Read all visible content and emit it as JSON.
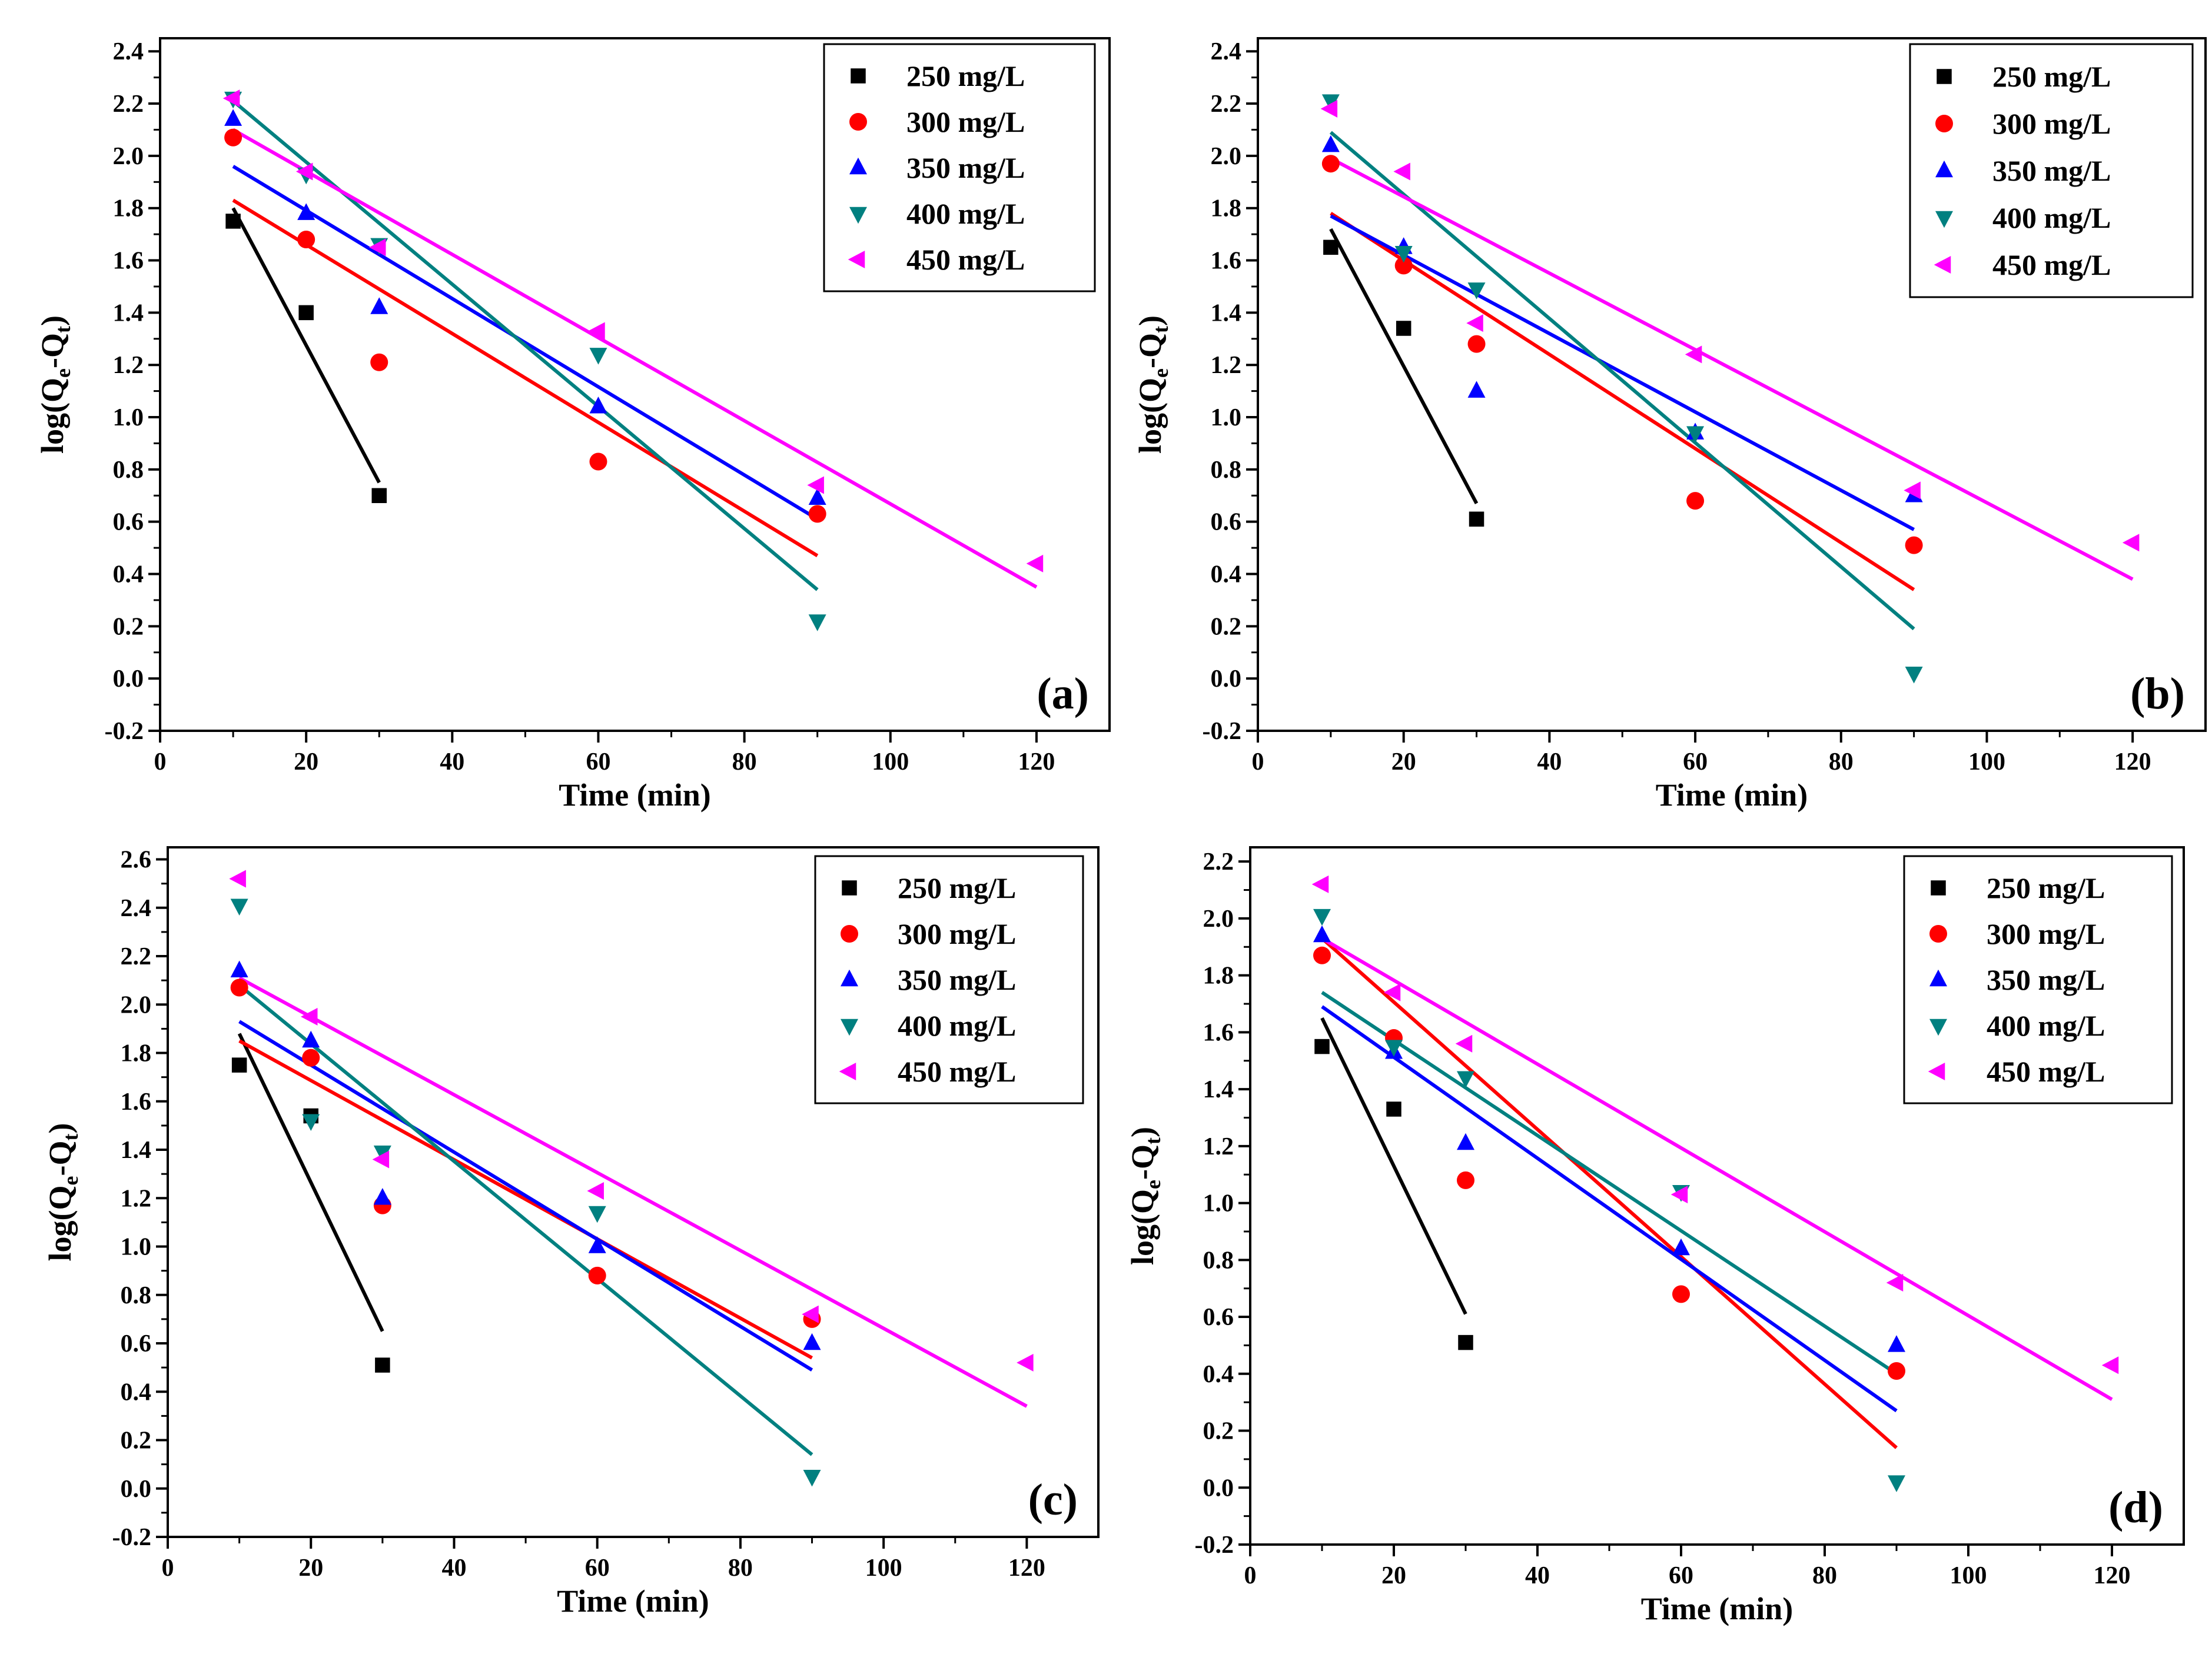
{
  "figure": {
    "colors": {
      "250 mg/L": "#000000",
      "300 mg/L": "#ff0000",
      "350 mg/L": "#0000ff",
      "400 mg/L": "#008080",
      "450 mg/L": "#ff00ff"
    },
    "markers": {
      "250 mg/L": "square",
      "300 mg/L": "circle",
      "350 mg/L": "triangle-up",
      "400 mg/L": "triangle-down",
      "450 mg/L": "triangle-left"
    }
  },
  "chart_data": [
    {
      "type": "scatter",
      "panel_label": "(a)",
      "xlabel": "Time (min)",
      "ylabel": "log(Q",
      "ylabel_sub_e": "e",
      "ylabel_mid": "-Q",
      "ylabel_sub_t": "t",
      "ylabel_end": ")",
      "xlim": [
        0,
        130
      ],
      "ylim": [
        -0.2,
        2.45
      ],
      "xticks": [
        0,
        20,
        40,
        60,
        80,
        100,
        120
      ],
      "xtick_labels": [
        "0",
        "20",
        "40",
        "60",
        "80",
        "100",
        "120"
      ],
      "yticks": [
        -0.2,
        0.0,
        0.2,
        0.4,
        0.6,
        0.8,
        1.0,
        1.2,
        1.4,
        1.6,
        1.8,
        2.0,
        2.2,
        2.4
      ],
      "ytick_labels": [
        "-0.2",
        "0.0",
        "0.2",
        "0.4",
        "0.6",
        "0.8",
        "1.0",
        "1.2",
        "1.4",
        "1.6",
        "1.8",
        "2.0",
        "2.2",
        "2.4"
      ],
      "legend_position": "top-right",
      "series": [
        {
          "name": "250 mg/L",
          "x": [
            10,
            20,
            30
          ],
          "y": [
            1.75,
            1.4,
            0.7
          ],
          "fit": [
            [
              10,
              1.8
            ],
            [
              30,
              0.75
            ]
          ]
        },
        {
          "name": "300 mg/L",
          "x": [
            10,
            20,
            30,
            60,
            90
          ],
          "y": [
            2.07,
            1.68,
            1.21,
            0.83,
            0.63
          ],
          "fit": [
            [
              10,
              1.83
            ],
            [
              90,
              0.47
            ]
          ]
        },
        {
          "name": "350 mg/L",
          "x": [
            10,
            20,
            30,
            60,
            90
          ],
          "y": [
            2.14,
            1.78,
            1.42,
            1.04,
            0.69
          ],
          "fit": [
            [
              10,
              1.96
            ],
            [
              90,
              0.61
            ]
          ]
        },
        {
          "name": "400 mg/L",
          "x": [
            10,
            20,
            30,
            60,
            90
          ],
          "y": [
            2.22,
            1.93,
            1.66,
            1.24,
            0.22
          ],
          "fit": [
            [
              10,
              2.21
            ],
            [
              90,
              0.34
            ]
          ]
        },
        {
          "name": "450 mg/L",
          "x": [
            10,
            20,
            30,
            60,
            90,
            120
          ],
          "y": [
            2.22,
            1.94,
            1.65,
            1.33,
            0.74,
            0.44
          ],
          "fit": [
            [
              10,
              2.1
            ],
            [
              120,
              0.35
            ]
          ]
        }
      ]
    },
    {
      "type": "scatter",
      "panel_label": "(b)",
      "xlabel": "Time (min)",
      "ylabel": "log(Q",
      "ylabel_sub_e": "e",
      "ylabel_mid": "-Q",
      "ylabel_sub_t": "t",
      "ylabel_end": ")",
      "xlim": [
        0,
        130
      ],
      "ylim": [
        -0.2,
        2.45
      ],
      "xticks": [
        0,
        20,
        40,
        60,
        80,
        100,
        120
      ],
      "xtick_labels": [
        "0",
        "20",
        "40",
        "60",
        "80",
        "100",
        "120"
      ],
      "yticks": [
        -0.2,
        0.0,
        0.2,
        0.4,
        0.6,
        0.8,
        1.0,
        1.2,
        1.4,
        1.6,
        1.8,
        2.0,
        2.2,
        2.4
      ],
      "ytick_labels": [
        "-0.2",
        "0.0",
        "0.2",
        "0.4",
        "0.6",
        "0.8",
        "1.0",
        "1.2",
        "1.4",
        "1.6",
        "1.8",
        "2.0",
        "2.2",
        "2.4"
      ],
      "legend_position": "top-right",
      "series": [
        {
          "name": "250 mg/L",
          "x": [
            10,
            20,
            30
          ],
          "y": [
            1.65,
            1.34,
            0.61
          ],
          "fit": [
            [
              10,
              1.72
            ],
            [
              30,
              0.67
            ]
          ]
        },
        {
          "name": "300 mg/L",
          "x": [
            10,
            20,
            30,
            60,
            90
          ],
          "y": [
            1.97,
            1.58,
            1.28,
            0.68,
            0.51
          ],
          "fit": [
            [
              10,
              1.78
            ],
            [
              90,
              0.34
            ]
          ]
        },
        {
          "name": "350 mg/L",
          "x": [
            10,
            20,
            30,
            60,
            90
          ],
          "y": [
            2.04,
            1.65,
            1.1,
            0.94,
            0.7
          ],
          "fit": [
            [
              10,
              1.77
            ],
            [
              90,
              0.57
            ]
          ]
        },
        {
          "name": "400 mg/L",
          "x": [
            10,
            20,
            30,
            60,
            90
          ],
          "y": [
            2.21,
            1.63,
            1.49,
            0.94,
            0.02
          ],
          "fit": [
            [
              10,
              2.09
            ],
            [
              90,
              0.19
            ]
          ]
        },
        {
          "name": "450 mg/L",
          "x": [
            10,
            20,
            30,
            60,
            90,
            120
          ],
          "y": [
            2.18,
            1.94,
            1.36,
            1.24,
            0.72,
            0.52
          ],
          "fit": [
            [
              10,
              1.99
            ],
            [
              120,
              0.38
            ]
          ]
        }
      ]
    },
    {
      "type": "scatter",
      "panel_label": "(c)",
      "xlabel": "Time (min)",
      "ylabel": "log(Q",
      "ylabel_sub_e": "e",
      "ylabel_mid": "-Q",
      "ylabel_sub_t": "t",
      "ylabel_end": ")",
      "xlim": [
        0,
        130
      ],
      "ylim": [
        -0.2,
        2.65
      ],
      "xticks": [
        0,
        20,
        40,
        60,
        80,
        100,
        120
      ],
      "xtick_labels": [
        "0",
        "20",
        "40",
        "60",
        "80",
        "100",
        "120"
      ],
      "yticks": [
        -0.2,
        0.0,
        0.2,
        0.4,
        0.6,
        0.8,
        1.0,
        1.2,
        1.4,
        1.6,
        1.8,
        2.0,
        2.2,
        2.4,
        2.6
      ],
      "ytick_labels": [
        "-0.2",
        "0.0",
        "0.2",
        "0.4",
        "0.6",
        "0.8",
        "1.0",
        "1.2",
        "1.4",
        "1.6",
        "1.8",
        "2.0",
        "2.2",
        "2.4",
        "2.6"
      ],
      "legend_position": "top-right",
      "series": [
        {
          "name": "250 mg/L",
          "x": [
            10,
            20,
            30
          ],
          "y": [
            1.75,
            1.54,
            0.51
          ],
          "fit": [
            [
              10,
              1.88
            ],
            [
              30,
              0.65
            ]
          ]
        },
        {
          "name": "300 mg/L",
          "x": [
            10,
            20,
            30,
            60,
            90
          ],
          "y": [
            2.07,
            1.78,
            1.17,
            0.88,
            0.7
          ],
          "fit": [
            [
              10,
              1.85
            ],
            [
              90,
              0.54
            ]
          ]
        },
        {
          "name": "350 mg/L",
          "x": [
            10,
            20,
            30,
            60,
            90
          ],
          "y": [
            2.14,
            1.85,
            1.2,
            1.0,
            0.6
          ],
          "fit": [
            [
              10,
              1.93
            ],
            [
              90,
              0.49
            ]
          ]
        },
        {
          "name": "400 mg/L",
          "x": [
            10,
            20,
            30,
            60,
            90
          ],
          "y": [
            2.41,
            1.52,
            1.39,
            1.14,
            0.05
          ],
          "fit": [
            [
              10,
              2.08
            ],
            [
              90,
              0.14
            ]
          ]
        },
        {
          "name": "450 mg/L",
          "x": [
            10,
            20,
            30,
            60,
            90,
            120
          ],
          "y": [
            2.52,
            1.95,
            1.36,
            1.23,
            0.72,
            0.52
          ],
          "fit": [
            [
              10,
              2.11
            ],
            [
              120,
              0.34
            ]
          ]
        }
      ]
    },
    {
      "type": "scatter",
      "panel_label": "(d)",
      "xlabel": "Time (min)",
      "ylabel": "log(Q",
      "ylabel_sub_e": "e",
      "ylabel_mid": "-Q",
      "ylabel_sub_t": "t",
      "ylabel_end": ")",
      "xlim": [
        0,
        130
      ],
      "ylim": [
        -0.2,
        2.25
      ],
      "xticks": [
        0,
        20,
        40,
        60,
        80,
        100,
        120
      ],
      "xtick_labels": [
        "0",
        "20",
        "40",
        "60",
        "80",
        "100",
        "120"
      ],
      "yticks": [
        -0.2,
        0.0,
        0.2,
        0.4,
        0.6,
        0.8,
        1.0,
        1.2,
        1.4,
        1.6,
        1.8,
        2.0,
        2.2
      ],
      "ytick_labels": [
        "-0.2",
        "0.0",
        "0.2",
        "0.4",
        "0.6",
        "0.8",
        "1.0",
        "1.2",
        "1.4",
        "1.6",
        "1.8",
        "2.0",
        "2.2"
      ],
      "legend_position": "top-right",
      "series": [
        {
          "name": "250 mg/L",
          "x": [
            10,
            20,
            30
          ],
          "y": [
            1.55,
            1.33,
            0.51
          ],
          "fit": [
            [
              10,
              1.65
            ],
            [
              30,
              0.61
            ]
          ]
        },
        {
          "name": "300 mg/L",
          "x": [
            10,
            20,
            30,
            60,
            90
          ],
          "y": [
            1.87,
            1.58,
            1.08,
            0.68,
            0.41
          ],
          "fit": [
            [
              10,
              1.93
            ],
            [
              90,
              0.14
            ]
          ]
        },
        {
          "name": "350 mg/L",
          "x": [
            10,
            20,
            30,
            60,
            90
          ],
          "y": [
            1.94,
            1.53,
            1.21,
            0.84,
            0.5
          ],
          "fit": [
            [
              10,
              1.69
            ],
            [
              90,
              0.27
            ]
          ]
        },
        {
          "name": "400 mg/L",
          "x": [
            10,
            20,
            30,
            60,
            90
          ],
          "y": [
            2.01,
            1.55,
            1.44,
            1.04,
            0.02
          ],
          "fit": [
            [
              10,
              1.74
            ],
            [
              90,
              0.4
            ]
          ]
        },
        {
          "name": "450 mg/L",
          "x": [
            10,
            20,
            30,
            60,
            90,
            120
          ],
          "y": [
            2.12,
            1.74,
            1.56,
            1.03,
            0.72,
            0.43
          ],
          "fit": [
            [
              10,
              1.93
            ],
            [
              120,
              0.31
            ]
          ]
        }
      ]
    }
  ]
}
